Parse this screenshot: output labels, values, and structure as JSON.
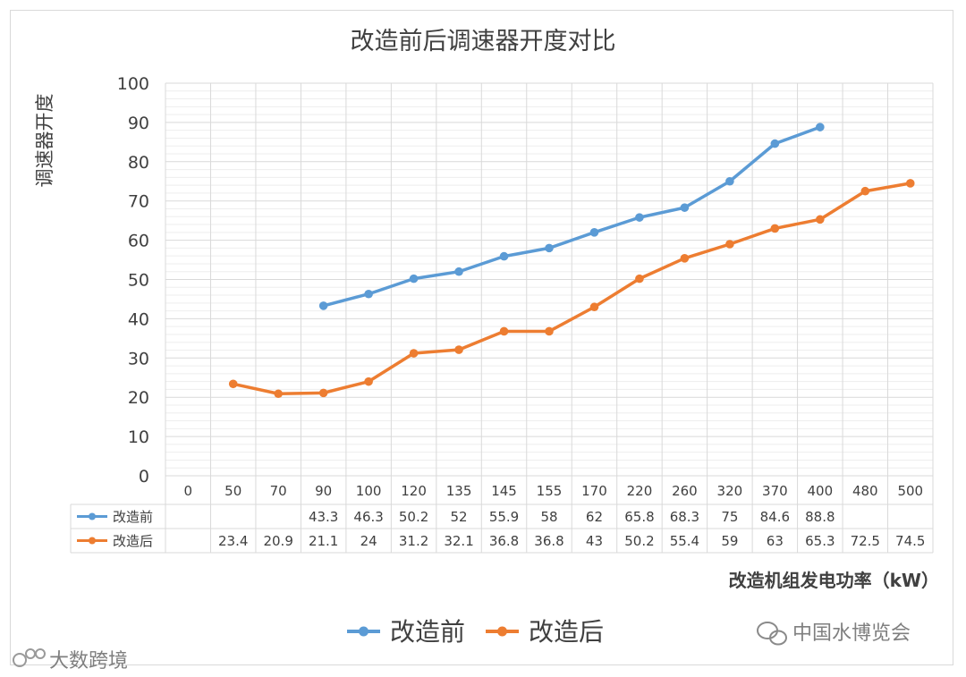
{
  "chart_data": {
    "type": "line",
    "title": "改造前后调速器开度对比",
    "ylabel": "调速器开度",
    "xlabel": "改造机组发电功率（kW）",
    "ylim": [
      0,
      100
    ],
    "y_ticks": [
      0,
      10,
      20,
      30,
      40,
      50,
      60,
      70,
      80,
      90,
      100
    ],
    "grid": true,
    "legend": "bottom",
    "data_table": true,
    "categories": [
      "0",
      "50",
      "70",
      "90",
      "100",
      "120",
      "135",
      "145",
      "155",
      "170",
      "220",
      "260",
      "320",
      "370",
      "400",
      "480",
      "500"
    ],
    "series": [
      {
        "name": "改造前",
        "color": "#5b9bd5",
        "values": [
          null,
          null,
          null,
          43.3,
          46.3,
          50.2,
          52,
          55.9,
          58,
          62,
          65.8,
          68.3,
          75,
          84.6,
          88.8,
          null,
          null
        ]
      },
      {
        "name": "改造后",
        "color": "#ed7d31",
        "values": [
          null,
          23.4,
          20.9,
          21.1,
          24,
          31.2,
          32.1,
          36.8,
          36.8,
          43,
          50.2,
          55.4,
          59,
          63,
          65.3,
          72.5,
          74.5
        ]
      }
    ]
  },
  "watermarks": {
    "left": "大数跨境",
    "right": "中国水博览会"
  }
}
